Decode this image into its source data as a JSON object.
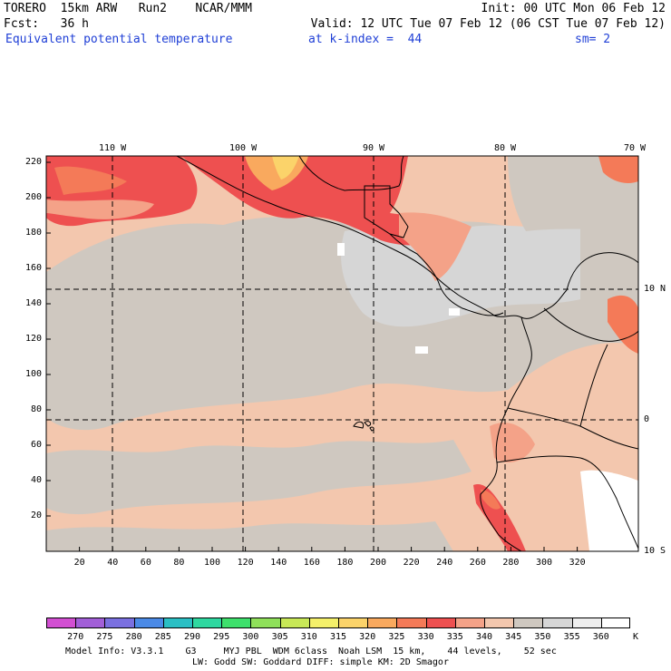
{
  "header": {
    "line1_left": "TORERO  15km ARW   Run2    NCAR/MMM",
    "line1_right": "Init: 00 UTC Mon 06 Feb 12",
    "line2_left": "Fcst:   36 h",
    "line2_right": "Valid: 12 UTC Tue 07 Feb 12 (06 CST Tue 07 Feb 12)",
    "line3_field": "Equivalent potential temperature",
    "line3_level": "at k-index =  44",
    "line3_smooth": "sm= 2"
  },
  "map": {
    "lon_labels": [
      "110 W",
      "100 W",
      "90 W",
      "80 W",
      "70 W"
    ],
    "lat_labels": [
      "10 N",
      "0",
      "10 S"
    ],
    "y_ticks": [
      "20",
      "40",
      "60",
      "80",
      "100",
      "120",
      "140",
      "160",
      "180",
      "200",
      "220"
    ],
    "x_ticks": [
      "20",
      "40",
      "60",
      "80",
      "100",
      "120",
      "140",
      "160",
      "180",
      "200",
      "220",
      "240",
      "260",
      "280",
      "300",
      "320"
    ]
  },
  "colorbar": {
    "unit": "K",
    "labels": [
      "270",
      "275",
      "280",
      "285",
      "290",
      "295",
      "300",
      "305",
      "310",
      "315",
      "320",
      "325",
      "330",
      "335",
      "340",
      "345",
      "350",
      "355",
      "360"
    ],
    "colors": [
      "#d24fd2",
      "#a25fd8",
      "#7a70e0",
      "#4b8ae6",
      "#2bbfc4",
      "#2fd8a0",
      "#3ee06c",
      "#8fe05a",
      "#c8e857",
      "#f4f06a",
      "#fbd36a",
      "#f9a95e",
      "#f47a58",
      "#ee5050",
      "#f4a288",
      "#f3c7ae",
      "#cfc8c0",
      "#d6d6d6",
      "#eeeeee",
      "#ffffff"
    ]
  },
  "footer": {
    "line1": "Model Info: V3.3.1    G3     MYJ PBL  WDM 6class  Noah LSM  15 km,    44 levels,    52 sec",
    "line2": "LW: Godd SW: Goddard DIFF: simple KM: 2D Smagor"
  }
}
